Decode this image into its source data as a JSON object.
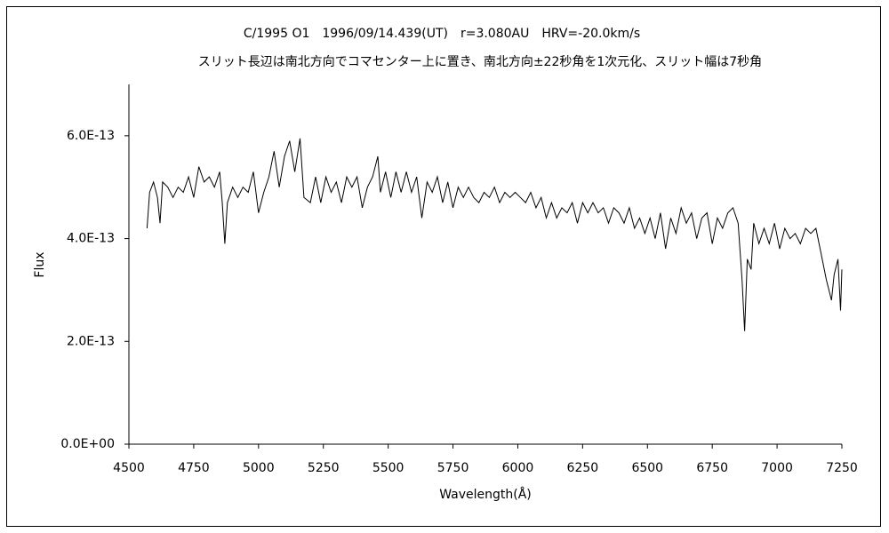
{
  "chart_data": {
    "type": "line",
    "title": "C/1995 O1　1996/09/14.439(UT)　r=3.080AU　HRV=-20.0km/s",
    "subtitle": "スリット長辺は南北方向でコマセンター上に置き、南北方向±22秒角を1次元化、スリット幅は7秒角",
    "xlabel": "Wavelength(Å)",
    "ylabel": "Flux",
    "color": "#000000",
    "xlim": [
      4500,
      7250
    ],
    "xticks": [
      4500,
      4750,
      5000,
      5250,
      5500,
      5750,
      6000,
      6250,
      6500,
      6750,
      7000,
      7250
    ],
    "ylim": [
      0,
      7e-13
    ],
    "yticks": [
      {
        "value": 0,
        "label": "0.0E+00"
      },
      {
        "value": 2e-13,
        "label": "2.0E-13"
      },
      {
        "value": 4e-13,
        "label": "4.0E-13"
      },
      {
        "value": 6e-13,
        "label": "6.0E-13"
      }
    ],
    "x": [
      4570,
      4580,
      4595,
      4610,
      4620,
      4630,
      4650,
      4670,
      4690,
      4710,
      4730,
      4750,
      4770,
      4790,
      4810,
      4830,
      4850,
      4860,
      4870,
      4880,
      4900,
      4920,
      4940,
      4960,
      4980,
      5000,
      5020,
      5040,
      5060,
      5080,
      5100,
      5120,
      5140,
      5160,
      5175,
      5200,
      5220,
      5240,
      5260,
      5280,
      5300,
      5320,
      5340,
      5360,
      5380,
      5400,
      5420,
      5440,
      5460,
      5470,
      5490,
      5510,
      5530,
      5550,
      5570,
      5590,
      5610,
      5630,
      5650,
      5670,
      5690,
      5710,
      5730,
      5750,
      5770,
      5790,
      5810,
      5830,
      5850,
      5870,
      5890,
      5910,
      5930,
      5950,
      5970,
      5990,
      6010,
      6030,
      6050,
      6070,
      6090,
      6110,
      6130,
      6150,
      6170,
      6190,
      6210,
      6230,
      6250,
      6270,
      6290,
      6310,
      6330,
      6350,
      6370,
      6390,
      6410,
      6430,
      6450,
      6470,
      6490,
      6510,
      6530,
      6550,
      6570,
      6590,
      6610,
      6630,
      6650,
      6670,
      6690,
      6710,
      6730,
      6750,
      6770,
      6790,
      6810,
      6830,
      6850,
      6865,
      6875,
      6885,
      6900,
      6910,
      6930,
      6950,
      6970,
      6990,
      7010,
      7030,
      7050,
      7070,
      7090,
      7110,
      7130,
      7150,
      7170,
      7190,
      7200,
      7210,
      7220,
      7235,
      7245,
      7250
    ],
    "values": [
      4.2e-13,
      4.9e-13,
      5.1e-13,
      4.8e-13,
      4.3e-13,
      5.1e-13,
      5e-13,
      4.8e-13,
      5e-13,
      4.9e-13,
      5.2e-13,
      4.8e-13,
      5.4e-13,
      5.1e-13,
      5.2e-13,
      5e-13,
      5.3e-13,
      4.7e-13,
      3.9e-13,
      4.7e-13,
      5e-13,
      4.8e-13,
      5e-13,
      4.9e-13,
      5.3e-13,
      4.5e-13,
      4.9e-13,
      5.2e-13,
      5.7e-13,
      5e-13,
      5.6e-13,
      5.9e-13,
      5.3e-13,
      5.95e-13,
      4.8e-13,
      4.7e-13,
      5.2e-13,
      4.7e-13,
      5.2e-13,
      4.9e-13,
      5.1e-13,
      4.7e-13,
      5.2e-13,
      5e-13,
      5.2e-13,
      4.6e-13,
      5e-13,
      5.2e-13,
      5.6e-13,
      4.9e-13,
      5.3e-13,
      4.8e-13,
      5.3e-13,
      4.9e-13,
      5.3e-13,
      4.9e-13,
      5.2e-13,
      4.4e-13,
      5.1e-13,
      4.9e-13,
      5.2e-13,
      4.7e-13,
      5.1e-13,
      4.6e-13,
      5e-13,
      4.8e-13,
      5e-13,
      4.8e-13,
      4.7e-13,
      4.9e-13,
      4.8e-13,
      5e-13,
      4.7e-13,
      4.9e-13,
      4.8e-13,
      4.9e-13,
      4.8e-13,
      4.7e-13,
      4.9e-13,
      4.6e-13,
      4.8e-13,
      4.4e-13,
      4.7e-13,
      4.4e-13,
      4.6e-13,
      4.5e-13,
      4.7e-13,
      4.3e-13,
      4.7e-13,
      4.5e-13,
      4.7e-13,
      4.5e-13,
      4.6e-13,
      4.3e-13,
      4.6e-13,
      4.5e-13,
      4.3e-13,
      4.6e-13,
      4.2e-13,
      4.4e-13,
      4.1e-13,
      4.4e-13,
      4e-13,
      4.5e-13,
      3.8e-13,
      4.4e-13,
      4.1e-13,
      4.6e-13,
      4.3e-13,
      4.5e-13,
      4e-13,
      4.4e-13,
      4.5e-13,
      3.9e-13,
      4.4e-13,
      4.2e-13,
      4.5e-13,
      4.6e-13,
      4.3e-13,
      3.2e-13,
      2.2e-13,
      3.6e-13,
      3.4e-13,
      4.3e-13,
      3.9e-13,
      4.2e-13,
      3.9e-13,
      4.3e-13,
      3.8e-13,
      4.2e-13,
      4e-13,
      4.1e-13,
      3.9e-13,
      4.2e-13,
      4.1e-13,
      4.2e-13,
      3.7e-13,
      3.2e-13,
      3e-13,
      2.8e-13,
      3.3e-13,
      3.6e-13,
      2.6e-13,
      3.4e-13
    ]
  }
}
